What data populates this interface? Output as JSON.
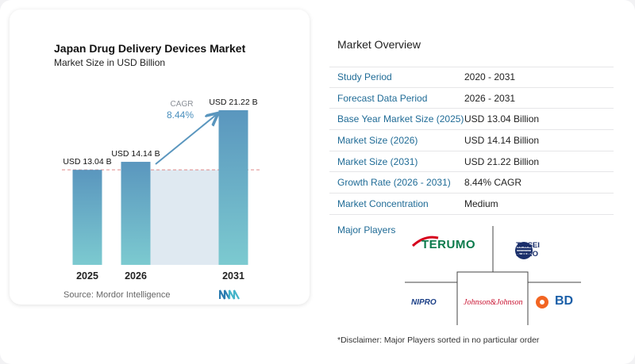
{
  "chart_data": {
    "type": "bar",
    "title": "Japan Drug Delivery Devices Market",
    "subtitle": "Market Size in USD Billion",
    "categories": [
      "2025",
      "2026",
      "2031"
    ],
    "values": [
      13.04,
      14.14,
      21.22
    ],
    "data_labels": [
      "USD 13.04 B",
      "USD 14.14 B",
      "USD 21.22 B"
    ],
    "ylim": [
      0,
      21.22
    ],
    "cagr_label": "CAGR",
    "cagr_value": "8.44%",
    "source": "Source:  Mordor Intelligence",
    "colors": {
      "bar_top": "#5a96be",
      "bar_bottom": "#7ccad0",
      "shade": "#dfe9f1",
      "arrow": "#5a96be",
      "reference_line": "#e08a8a"
    }
  },
  "overview": {
    "title": "Market Overview",
    "rows": [
      {
        "label": "Study Period",
        "value": "2020 - 2031"
      },
      {
        "label": "Forecast Data Period",
        "value": "2026 - 2031"
      },
      {
        "label": "Base Year Market Size (2025)",
        "value": "USD 13.04 Billion"
      },
      {
        "label": "Market Size (2026)",
        "value": "USD 14.14 Billion"
      },
      {
        "label": "Market Size (2031)",
        "value": "USD 21.22 Billion"
      },
      {
        "label": "Growth Rate (2026 - 2031)",
        "value": "8.44% CAGR"
      },
      {
        "label": "Market Concentration",
        "value": "Medium"
      }
    ]
  },
  "players": {
    "title": "Major Players",
    "logos": {
      "terumo": "TERUMO",
      "taisei_line1": "TAISEI",
      "taisei_line2": "KAKO",
      "nipro": "NIPRO",
      "jnj": "Johnson&Johnson",
      "bd": "BD"
    },
    "disclaimer": "*Disclaimer: Major Players sorted in no particular order"
  }
}
